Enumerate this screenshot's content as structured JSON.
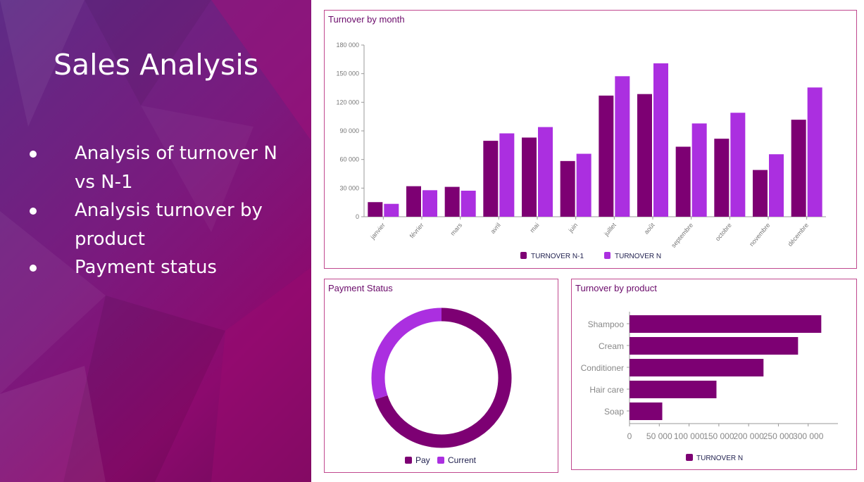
{
  "slide": {
    "title": "Sales Analysis",
    "bullets": [
      "Analysis of turnover  N",
      "vs N-1",
      "Analysis turnover by",
      "product",
      "Payment status"
    ]
  },
  "colors": {
    "dark": "#7d0073",
    "light": "#ab2fe0"
  },
  "chart_data": [
    {
      "type": "bar",
      "title": "Turnover by month",
      "categories": [
        "janvier",
        "février",
        "mars",
        "avril",
        "mai",
        "juin",
        "juillet",
        "août",
        "septembre",
        "octobre",
        "novembre",
        "décembre"
      ],
      "series": [
        {
          "name": "TURNOVER N-1",
          "values": [
            15300,
            32000,
            31300,
            79600,
            83000,
            58400,
            127000,
            128600,
            73400,
            81800,
            49000,
            101700
          ]
        },
        {
          "name": "TURNOVER N",
          "values": [
            13500,
            27800,
            27300,
            87400,
            94000,
            66000,
            147300,
            160800,
            97800,
            109000,
            65500,
            135500
          ]
        }
      ],
      "yticks": [
        "0",
        "30 000",
        "60 000",
        "90 000",
        "120 000",
        "150 000",
        "180 000"
      ],
      "ylim": [
        0,
        180000
      ],
      "legend": "bottom"
    },
    {
      "type": "pie",
      "title": "Payment Status",
      "categories": [
        "Pay",
        "Current"
      ],
      "values": [
        70,
        30
      ],
      "legend": "bottom"
    },
    {
      "type": "bar",
      "orientation": "horizontal",
      "title": "Turnover by product",
      "categories": [
        "Shampoo",
        "Cream",
        "Conditioner",
        "Hair care",
        "Soap"
      ],
      "series": [
        {
          "name": "TURNOVER N",
          "values": [
            322000,
            283000,
            225000,
            146000,
            55000
          ]
        }
      ],
      "xticks": [
        "0",
        "50 000",
        "100 000",
        "150 000",
        "200 000",
        "250 000",
        "300 000"
      ],
      "xlim": [
        0,
        350000
      ],
      "legend": "bottom"
    }
  ]
}
